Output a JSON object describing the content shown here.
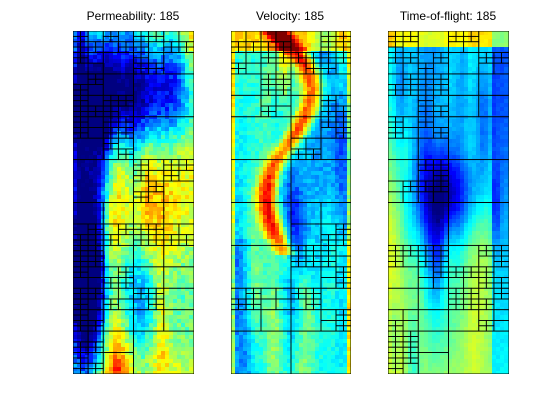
{
  "figure": {
    "panels": [
      {
        "title": "Permeability: 185",
        "field": "permeability"
      },
      {
        "title": "Velocity: 185",
        "field": "velocity"
      },
      {
        "title": "Time-of-flight: 185",
        "field": "time_of_flight"
      }
    ]
  },
  "colormap": "jet",
  "colors": {
    "grid_line": "#000000",
    "background": "#ffffff"
  },
  "chart_data": [
    {
      "type": "heatmap",
      "title": "Permeability: 185",
      "colormap": "jet",
      "axes_visible": false,
      "grid": true,
      "description_of_grid": "adaptive coarse-grid overlay"
    },
    {
      "type": "heatmap",
      "title": "Velocity: 185",
      "colormap": "jet",
      "axes_visible": false,
      "grid": true
    },
    {
      "type": "heatmap",
      "title": "Time-of-flight: 185",
      "colormap": "jet",
      "axes_visible": false,
      "grid": true
    }
  ]
}
